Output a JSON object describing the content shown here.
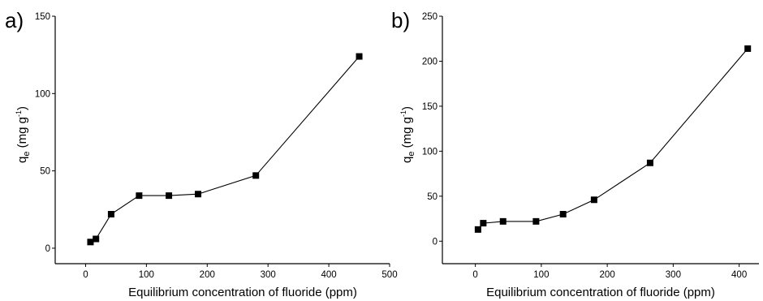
{
  "chart_data": [
    {
      "type": "line",
      "panel_label": "a)",
      "xlabel": "Equilibrium concentration of fluoride (ppm)",
      "ylabel": {
        "main": "q",
        "sub": "e",
        "unit_pre": " (mg g",
        "unit_sup": "-1",
        "unit_post": ")"
      },
      "xlim": [
        -50,
        500
      ],
      "ylim": [
        -10,
        150
      ],
      "xticks": [
        0,
        100,
        200,
        300,
        400,
        500
      ],
      "yticks": [
        0,
        50,
        100,
        150
      ],
      "grid": false,
      "marker": "square",
      "series": [
        {
          "x": [
            8,
            17,
            42,
            88,
            137,
            185,
            280,
            450
          ],
          "y": [
            4,
            6,
            22,
            34,
            34,
            35,
            47,
            124
          ]
        }
      ]
    },
    {
      "type": "line",
      "panel_label": "b)",
      "xlabel": "Equilibrium concentration of fluoride (ppm)",
      "ylabel": {
        "main": "q",
        "sub": "e",
        "unit_pre": " (mg g",
        "unit_sup": "-1",
        "unit_post": ")"
      },
      "xlim": [
        -50,
        430
      ],
      "ylim": [
        -25,
        250
      ],
      "xticks": [
        0,
        100,
        200,
        300,
        400
      ],
      "yticks": [
        0,
        50,
        100,
        150,
        200,
        250
      ],
      "grid": false,
      "marker": "square",
      "series": [
        {
          "x": [
            4,
            12,
            42,
            92,
            133,
            180,
            265,
            413
          ],
          "y": [
            13,
            20,
            22,
            22,
            30,
            46,
            87,
            214
          ]
        }
      ]
    }
  ]
}
